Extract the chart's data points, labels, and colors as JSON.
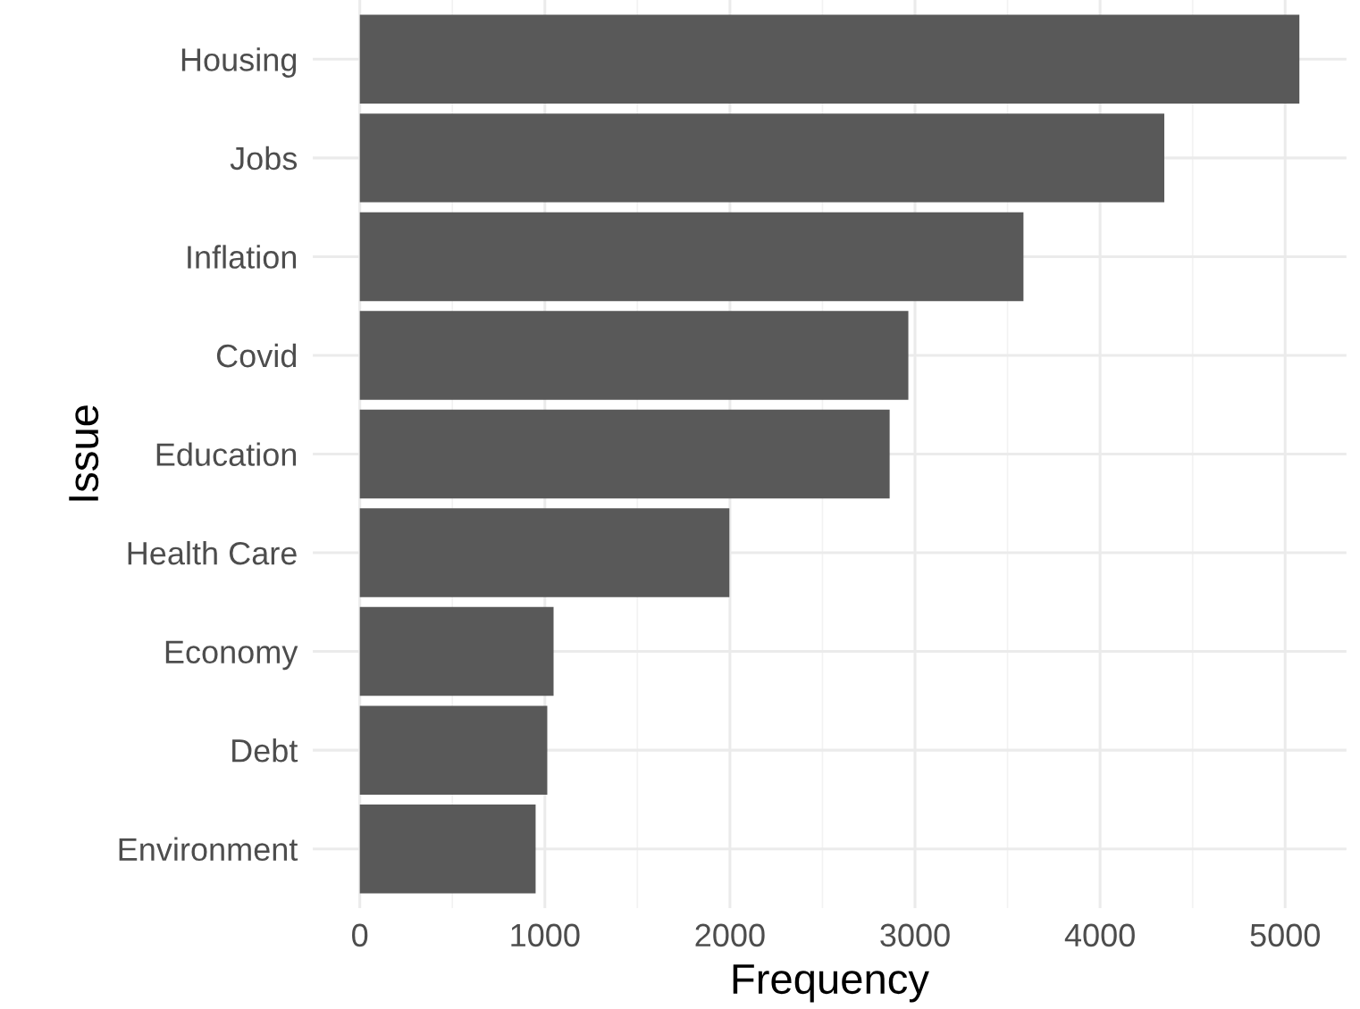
{
  "chart_data": {
    "type": "bar",
    "orientation": "horizontal",
    "xlabel": "Frequency",
    "ylabel": "Issue",
    "categories": [
      "Housing",
      "Jobs",
      "Inflation",
      "Covid",
      "Education",
      "Health Care",
      "Economy",
      "Debt",
      "Environment"
    ],
    "values": [
      5077,
      4347,
      3586,
      2964,
      2863,
      1997,
      1047,
      1013,
      950
    ],
    "color": "#595959",
    "xlim": [
      -254,
      5331
    ],
    "xticks": [
      0,
      1000,
      2000,
      3000,
      4000,
      5000
    ],
    "grid": true
  }
}
